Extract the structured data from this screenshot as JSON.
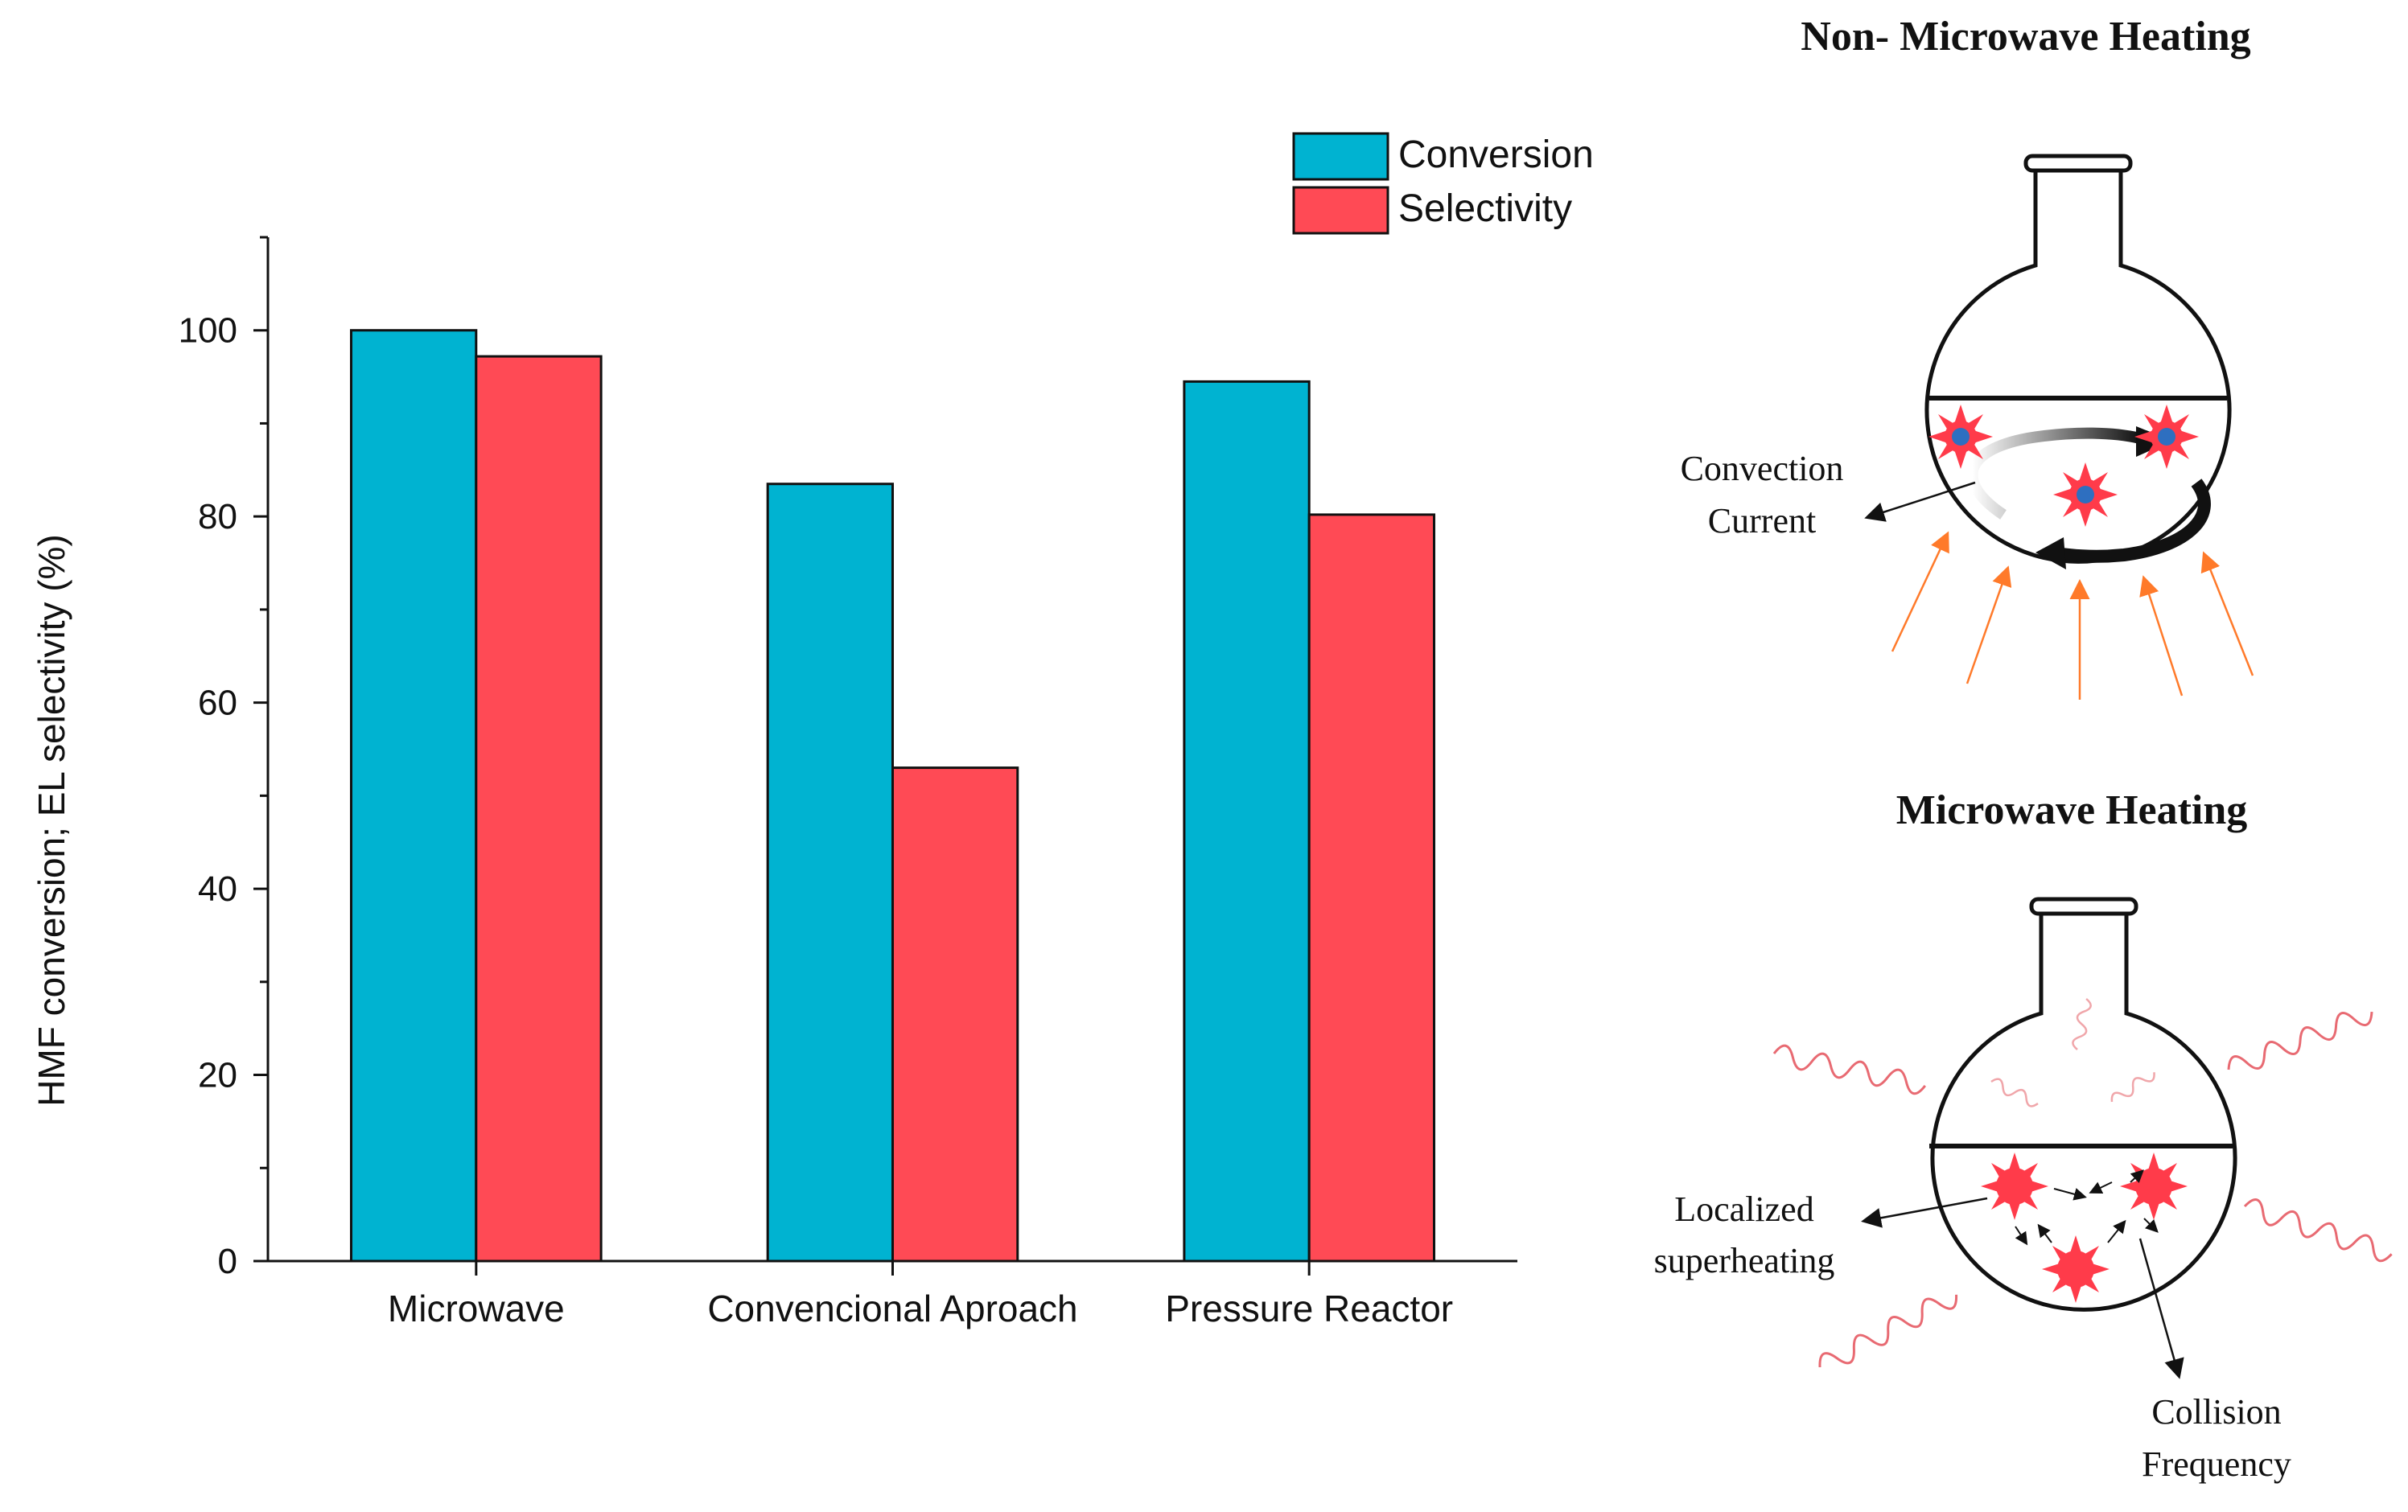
{
  "chart_data": {
    "type": "bar",
    "categories": [
      "Microwave",
      "Convencional Aproach",
      "Pressure Reactor"
    ],
    "series": [
      {
        "name": "Conversion",
        "values": [
          100,
          83.5,
          94.5
        ],
        "color": "#00b3d1"
      },
      {
        "name": "Selectivity",
        "values": [
          97.2,
          53,
          80.2
        ],
        "color": "#ff4a55"
      }
    ],
    "ylabel": "HMF conversion; EL selectivity (%)",
    "xlabel": "",
    "ylim": [
      0,
      110
    ],
    "yticks": [
      0,
      20,
      40,
      60,
      80,
      100
    ],
    "grid": false,
    "legend": "top-right"
  },
  "diagram": {
    "top_title": "Non- Microwave Heating",
    "top_label_line1": "Convection",
    "top_label_line2": "Current",
    "bottom_title": "Microwave Heating",
    "label_left_line1": "Localized",
    "label_left_line2": "superheating",
    "label_right_line1": "Collision",
    "label_right_line2": "Frequency",
    "heat_arrow_color": "#ff7a2a",
    "molecule_color": "#ff3b4a",
    "molecule_core_color": "#2e6fc0",
    "wave_color": "#e86a72"
  }
}
